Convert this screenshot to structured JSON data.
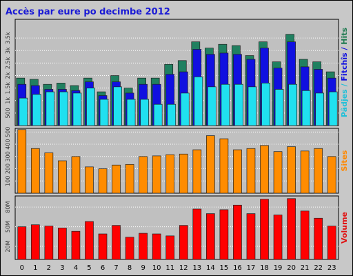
{
  "chart_data": {
    "type": "bar",
    "title": "Accès par eure po decimbe 2012",
    "categories": [
      "0",
      "1",
      "2",
      "3",
      "4",
      "5",
      "6",
      "7",
      "8",
      "9",
      "10",
      "11",
      "12",
      "13",
      "14",
      "15",
      "16",
      "17",
      "18",
      "19",
      "20",
      "21",
      "22",
      "23"
    ],
    "grid": true,
    "panels": [
      {
        "id": "traffic",
        "ylim": [
          0,
          4250
        ],
        "ticks": [
          500,
          1000,
          1500,
          2000,
          2500,
          3000,
          3500
        ],
        "tick_labels": [
          "500",
          "1k",
          "1.5k",
          "2k",
          "2.5k",
          "3k",
          "3.5k"
        ],
        "ylabel_parts": [
          {
            "text": "Pâdjes",
            "color": "#20c0d8"
          },
          {
            "text": " / ",
            "color": "#20c0d8"
          },
          {
            "text": "Fitchîs",
            "color": "#1010e0"
          },
          {
            "text": " / ",
            "color": "#1010e0"
          },
          {
            "text": "Hits",
            "color": "#1e7a50"
          }
        ],
        "series": [
          {
            "name": "Hits",
            "color": "#208060",
            "values": [
              1900,
              1850,
              1650,
              1700,
              1600,
              1900,
              1350,
              2000,
              1500,
              1900,
              1900,
              2450,
              2600,
              3350,
              3100,
              3250,
              3200,
              2800,
              3350,
              2550,
              3650,
              2650,
              2550,
              2150
            ]
          },
          {
            "name": "Fitchîs",
            "color": "#1010e0",
            "values": [
              1650,
              1600,
              1450,
              1450,
              1400,
              1750,
              1200,
              1750,
              1300,
              1650,
              1650,
              2050,
              2150,
              3050,
              2850,
              2900,
              2850,
              2650,
              3100,
              2300,
              3350,
              2350,
              2250,
              1900
            ]
          },
          {
            "name": "Pâdjes",
            "color": "#20e0f0",
            "values": [
              1100,
              1250,
              1350,
              1350,
              1300,
              1500,
              1050,
              1550,
              1050,
              1050,
              850,
              850,
              1300,
              1950,
              1550,
              1650,
              1650,
              1550,
              1700,
              1450,
              1650,
              1400,
              1300,
              1350
            ]
          }
        ]
      },
      {
        "id": "sites",
        "ylim": [
          0,
          530
        ],
        "ticks": [
          100,
          200,
          300,
          400,
          500
        ],
        "tick_labels": [
          "100",
          "200",
          "300",
          "400",
          "500"
        ],
        "ylabel_parts": [
          {
            "text": "Sites",
            "color": "#ff8800"
          }
        ],
        "series": [
          {
            "name": "Sites",
            "color": "#ff8c00",
            "values": [
              520,
              365,
              330,
              265,
              300,
              215,
              200,
              230,
              235,
              300,
              305,
              315,
              320,
              355,
              470,
              445,
              355,
              365,
              390,
              340,
              380,
              345,
              365,
              300
            ]
          }
        ]
      },
      {
        "id": "volume",
        "ylim": [
          0,
          97
        ],
        "ticks": [
          20,
          50,
          80
        ],
        "tick_labels": [
          "20M",
          "50M",
          "80M"
        ],
        "ylabel_parts": [
          {
            "text": "Volume",
            "color": "#e01010"
          }
        ],
        "series": [
          {
            "name": "Volume",
            "color": "#ff0000",
            "values": [
              50,
              53,
              51,
              48,
              43,
              58,
              39,
              52,
              34,
              40,
              39,
              36,
              52,
              77,
              70,
              76,
              83,
              70,
              92,
              68,
              93,
              74,
              63,
              51
            ]
          }
        ]
      }
    ]
  }
}
